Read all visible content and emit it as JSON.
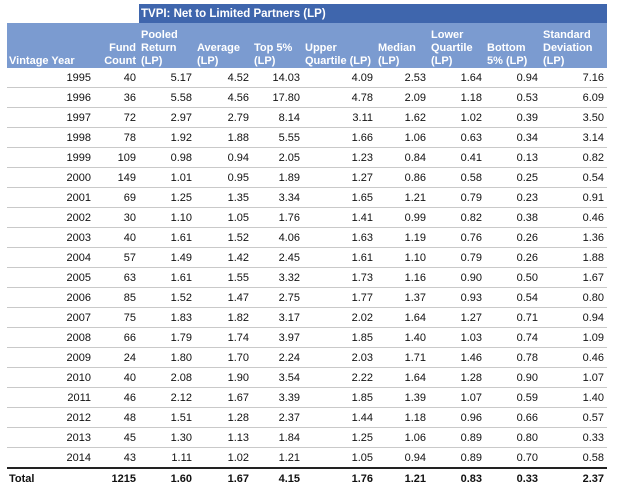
{
  "table": {
    "title": "TVPI: Net to Limited Partners (LP)",
    "headers": [
      "Vintage Year",
      "Fund Count",
      "Pooled Return (LP)",
      "Average (LP)",
      "Top 5% (LP)",
      "Upper Quartile (LP)",
      "Median (LP)",
      "Lower Quartile (LP)",
      "Bottom 5% (LP)",
      "Standard Deviation (LP)"
    ],
    "rows": [
      [
        "1995",
        "40",
        "5.17",
        "4.52",
        "14.03",
        "4.09",
        "2.53",
        "1.64",
        "0.94",
        "7.16"
      ],
      [
        "1996",
        "36",
        "5.58",
        "4.56",
        "17.80",
        "4.78",
        "2.09",
        "1.18",
        "0.53",
        "6.09"
      ],
      [
        "1997",
        "72",
        "2.97",
        "2.79",
        "8.14",
        "3.11",
        "1.62",
        "1.02",
        "0.39",
        "3.50"
      ],
      [
        "1998",
        "78",
        "1.92",
        "1.88",
        "5.55",
        "1.66",
        "1.06",
        "0.63",
        "0.34",
        "3.14"
      ],
      [
        "1999",
        "109",
        "0.98",
        "0.94",
        "2.05",
        "1.23",
        "0.84",
        "0.41",
        "0.13",
        "0.82"
      ],
      [
        "2000",
        "149",
        "1.01",
        "0.95",
        "1.89",
        "1.27",
        "0.86",
        "0.58",
        "0.25",
        "0.54"
      ],
      [
        "2001",
        "69",
        "1.25",
        "1.35",
        "3.34",
        "1.65",
        "1.21",
        "0.79",
        "0.23",
        "0.91"
      ],
      [
        "2002",
        "30",
        "1.10",
        "1.05",
        "1.76",
        "1.41",
        "0.99",
        "0.82",
        "0.38",
        "0.46"
      ],
      [
        "2003",
        "40",
        "1.61",
        "1.52",
        "4.06",
        "1.63",
        "1.19",
        "0.76",
        "0.26",
        "1.36"
      ],
      [
        "2004",
        "57",
        "1.49",
        "1.42",
        "2.45",
        "1.61",
        "1.10",
        "0.79",
        "0.26",
        "1.88"
      ],
      [
        "2005",
        "63",
        "1.61",
        "1.55",
        "3.32",
        "1.73",
        "1.16",
        "0.90",
        "0.50",
        "1.67"
      ],
      [
        "2006",
        "85",
        "1.52",
        "1.47",
        "2.75",
        "1.77",
        "1.37",
        "0.93",
        "0.54",
        "0.80"
      ],
      [
        "2007",
        "75",
        "1.83",
        "1.82",
        "3.17",
        "2.02",
        "1.64",
        "1.27",
        "0.71",
        "0.94"
      ],
      [
        "2008",
        "66",
        "1.79",
        "1.74",
        "3.97",
        "1.85",
        "1.40",
        "1.03",
        "0.74",
        "1.09"
      ],
      [
        "2009",
        "24",
        "1.80",
        "1.70",
        "2.24",
        "2.03",
        "1.71",
        "1.46",
        "0.78",
        "0.46"
      ],
      [
        "2010",
        "40",
        "2.08",
        "1.90",
        "3.54",
        "2.22",
        "1.64",
        "1.28",
        "0.90",
        "1.07"
      ],
      [
        "2011",
        "46",
        "2.12",
        "1.67",
        "3.39",
        "1.85",
        "1.39",
        "1.07",
        "0.59",
        "1.40"
      ],
      [
        "2012",
        "48",
        "1.51",
        "1.28",
        "2.37",
        "1.44",
        "1.18",
        "0.96",
        "0.66",
        "0.57"
      ],
      [
        "2013",
        "45",
        "1.30",
        "1.13",
        "1.84",
        "1.25",
        "1.06",
        "0.89",
        "0.80",
        "0.33"
      ],
      [
        "2014",
        "43",
        "1.11",
        "1.02",
        "1.21",
        "1.05",
        "0.94",
        "0.89",
        "0.70",
        "0.58"
      ]
    ],
    "total": [
      "Total",
      "1215",
      "1.60",
      "1.67",
      "4.15",
      "1.76",
      "1.21",
      "0.83",
      "0.33",
      "2.37"
    ]
  },
  "colors": {
    "title_band": "#3f66ad",
    "header_band": "#7b9bd0",
    "header_text": "#ffffff"
  }
}
